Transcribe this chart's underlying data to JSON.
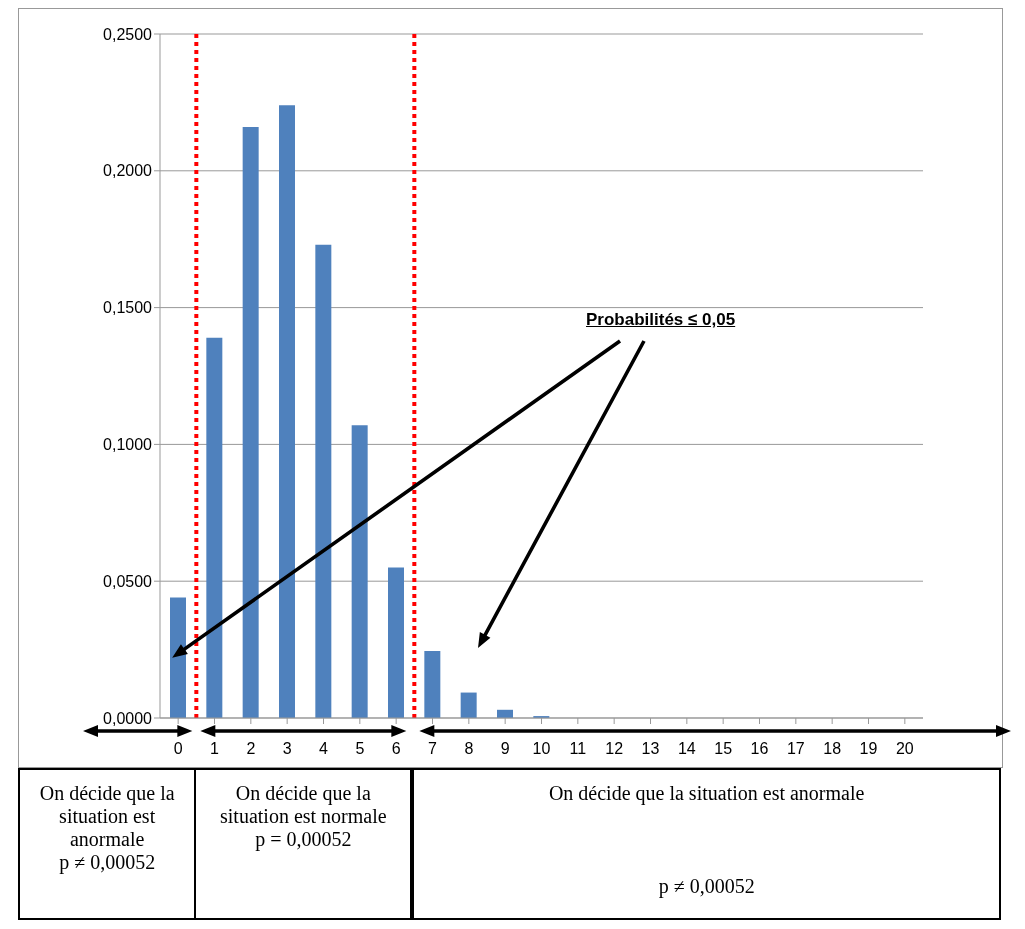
{
  "chart_data": {
    "type": "bar",
    "x": [
      0,
      1,
      2,
      3,
      4,
      5,
      6,
      7,
      8,
      9,
      10,
      11,
      12,
      13,
      14,
      15,
      16,
      17,
      18,
      19,
      20
    ],
    "values": [
      0.044,
      0.139,
      0.216,
      0.224,
      0.173,
      0.107,
      0.055,
      0.0245,
      0.0093,
      0.003,
      0.0007,
      0,
      0,
      0,
      0,
      0,
      0,
      0,
      0,
      0,
      0
    ],
    "color": "#4f81bd",
    "xlim": [
      -0.5,
      20.5
    ],
    "xticks": [
      0,
      1,
      2,
      3,
      4,
      5,
      6,
      7,
      8,
      9,
      10,
      11,
      12,
      13,
      14,
      15,
      16,
      17,
      18,
      19,
      20
    ],
    "ylim": [
      0,
      0.25
    ],
    "yticks": [
      {
        "value": 0,
        "label": "0,0000"
      },
      {
        "value": 0.05,
        "label": "0,0500"
      },
      {
        "value": 0.1,
        "label": "0,1000"
      },
      {
        "value": 0.15,
        "label": "0,1500"
      },
      {
        "value": 0.2,
        "label": "0,2000"
      },
      {
        "value": 0.25,
        "label": "0,2500"
      }
    ],
    "grid": "y",
    "ref_lines": [
      {
        "axis": "x",
        "value": 0.5,
        "color": "#ff0000",
        "line_style": "dotted"
      },
      {
        "axis": "x",
        "value": 6.5,
        "color": "#ff0000",
        "line_style": "dotted"
      }
    ],
    "annotations": [
      "Probabilités ≤ 0,05",
      "On décide que la situation est anormale",
      "p ≠ 0,00052",
      "On décide que la situation est normale",
      "p = 0,00052",
      "On décide que la situation est anormale",
      "p ≠ 0,00052"
    ]
  }
}
